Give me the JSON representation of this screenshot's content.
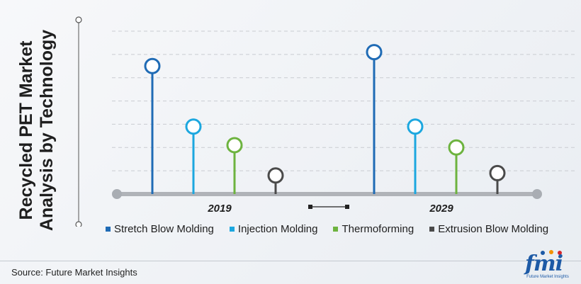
{
  "title": {
    "line1": "Recycled PET Market",
    "line2": "Analysis by Technology"
  },
  "source": "Source: Future Market Insights",
  "logo": {
    "text": "fmi",
    "subtext": "Future Market Insights"
  },
  "colors": {
    "stretch": "#1f6bb5",
    "injection": "#1ca7df",
    "thermo": "#6db33f",
    "extrusion": "#4a4a4a",
    "axis": "#b0b3b8",
    "grid": "#c9ccd1"
  },
  "chart_data": {
    "type": "lollipop",
    "categories": [
      "2019",
      "2029"
    ],
    "series": [
      {
        "name": "Stretch Blow Molding",
        "values": [
          5.5,
          6.1
        ]
      },
      {
        "name": "Injection Molding",
        "values": [
          2.9,
          2.9
        ]
      },
      {
        "name": "Thermoforming",
        "values": [
          2.1,
          2.0
        ]
      },
      {
        "name": "Extrusion Blow Molding",
        "values": [
          0.8,
          0.9
        ]
      }
    ],
    "ylim": [
      0,
      7
    ],
    "grid": true,
    "legend": "bottom"
  }
}
